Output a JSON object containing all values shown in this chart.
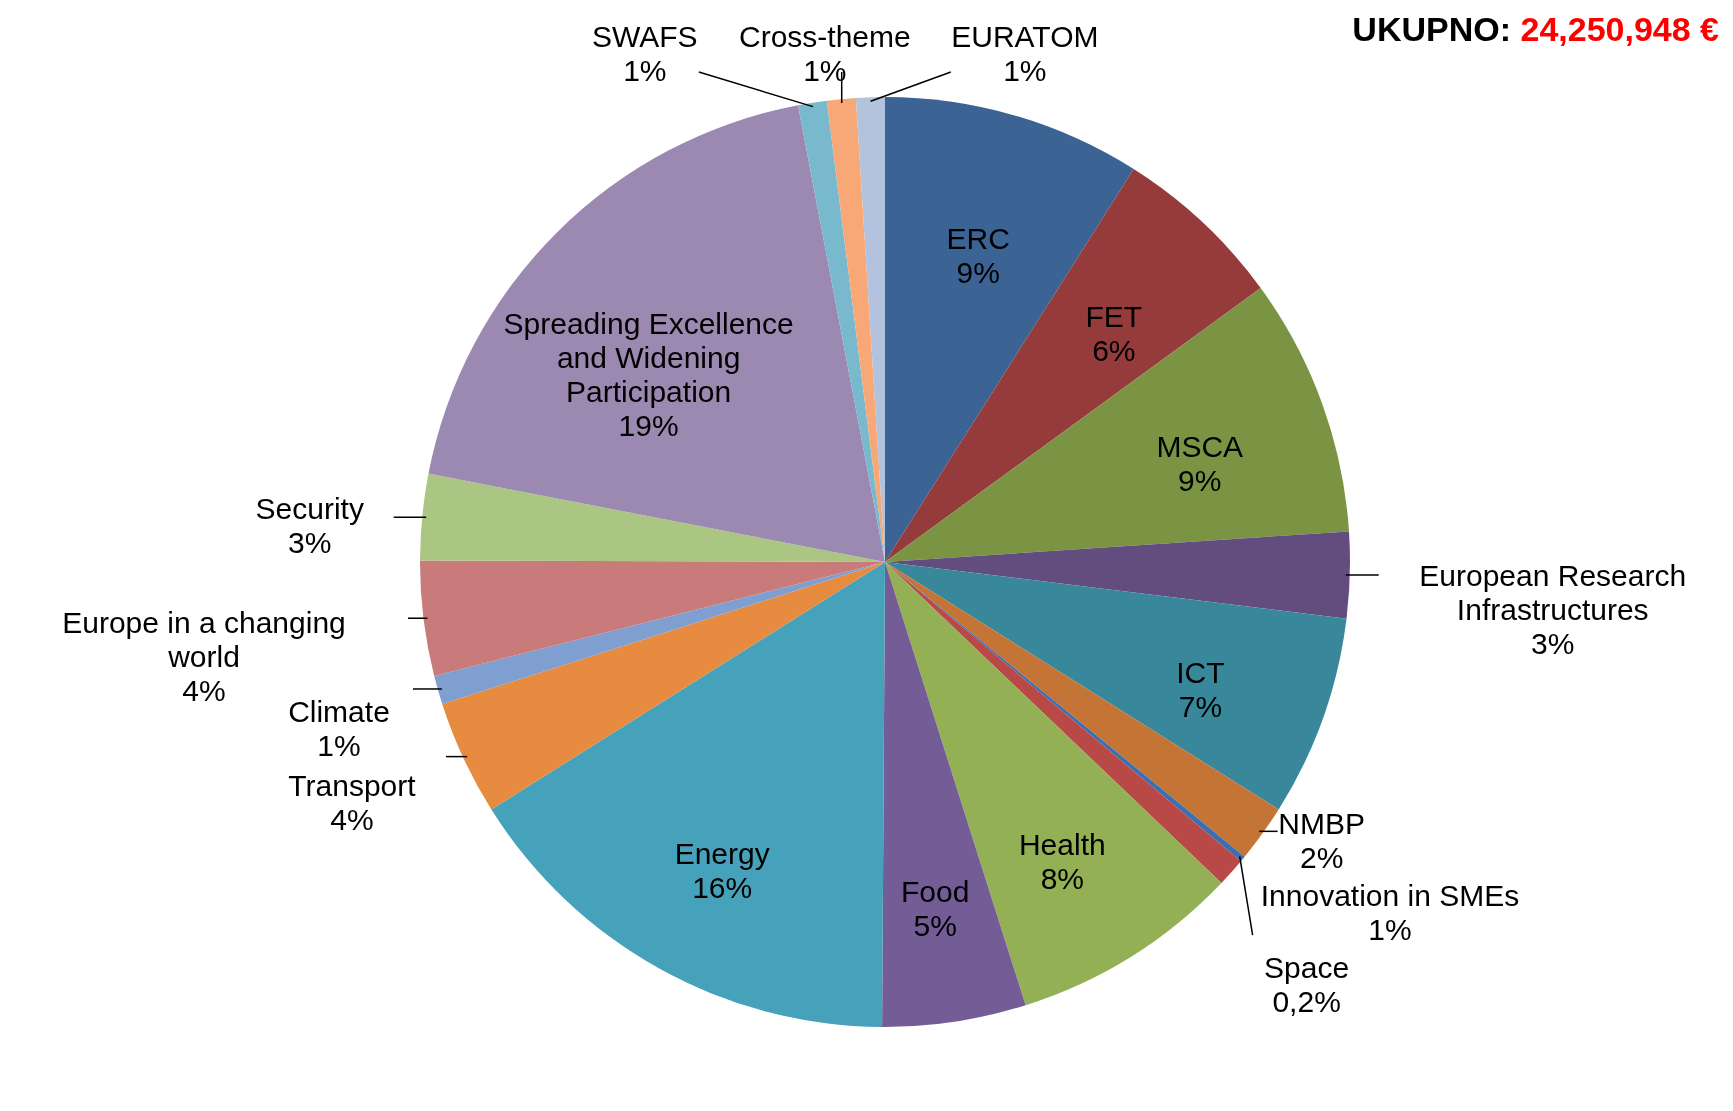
{
  "chart_data": {
    "type": "pie",
    "title": "UKUPNO:",
    "subtitle": "24,250,948 €",
    "categories": [
      "ERC",
      "FET",
      "MSCA",
      "European Research Infrastructures",
      "ICT",
      "NMBP",
      "Space",
      "Innovation in SMEs",
      "Health",
      "Food",
      "Energy",
      "Transport",
      "Climate",
      "Europe in a changing world",
      "Security",
      "Spreading Excellence and Widening Participation",
      "SWAFS",
      "Cross-theme",
      "EURATOM"
    ],
    "values": [
      9,
      6,
      9,
      3,
      7,
      2,
      0.2,
      1,
      8,
      5,
      16,
      4,
      1,
      4,
      3,
      19,
      1,
      1,
      1
    ],
    "value_labels": [
      "9%",
      "6%",
      "9%",
      "3%",
      "7%",
      "2%",
      "0,2%",
      "1%",
      "8%",
      "5%",
      "16%",
      "4%",
      "1%",
      "4%",
      "3%",
      "19%",
      "1%",
      "1%",
      "1%"
    ],
    "colors": [
      "#3b6394",
      "#953b3b",
      "#7a9444",
      "#634d7e",
      "#38879a",
      "#c47535",
      "#3d6eb0",
      "#b84947",
      "#93b055",
      "#745c97",
      "#46a2ba",
      "#e68b3f",
      "#7e9fcf",
      "#c87b7a",
      "#abc683",
      "#9c89b1",
      "#79b9ce",
      "#f8a877",
      "#b3c3dd"
    ]
  }
}
